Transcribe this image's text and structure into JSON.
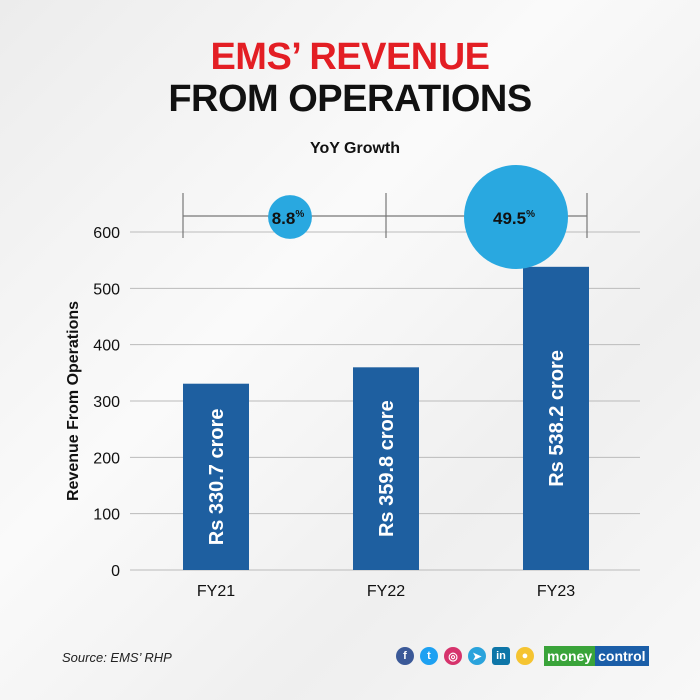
{
  "title_line1": "EMS’ REVENUE",
  "title_line2": "FROM OPERATIONS",
  "source": "Source: EMS’ RHP",
  "brand": {
    "part1": "money",
    "part2": "control"
  },
  "social_icons": [
    "facebook-icon",
    "twitter-icon",
    "instagram-icon",
    "telegram-icon",
    "linkedin-icon",
    "koo-icon"
  ],
  "colors": {
    "bar": "#1e5fa0",
    "bubble": "#29a8e0",
    "title_accent": "#e31e24"
  },
  "chart_data": {
    "type": "bar",
    "title": "EMS’ REVENUE FROM OPERATIONS",
    "ylabel": "Revenue From Operations",
    "ylim": [
      0,
      600
    ],
    "yticks": [
      0,
      100,
      200,
      300,
      400,
      500,
      600
    ],
    "categories": [
      "FY21",
      "FY22",
      "FY23"
    ],
    "values": [
      330.7,
      359.8,
      538.2
    ],
    "data_labels": [
      "Rs 330.7 crore",
      "Rs 359.8 crore",
      "Rs 538.2 crore"
    ],
    "growth": {
      "title": "YoY Growth",
      "values": [
        8.8,
        49.5
      ],
      "labels": [
        "8.8",
        "49.5"
      ],
      "unit": "%"
    }
  }
}
